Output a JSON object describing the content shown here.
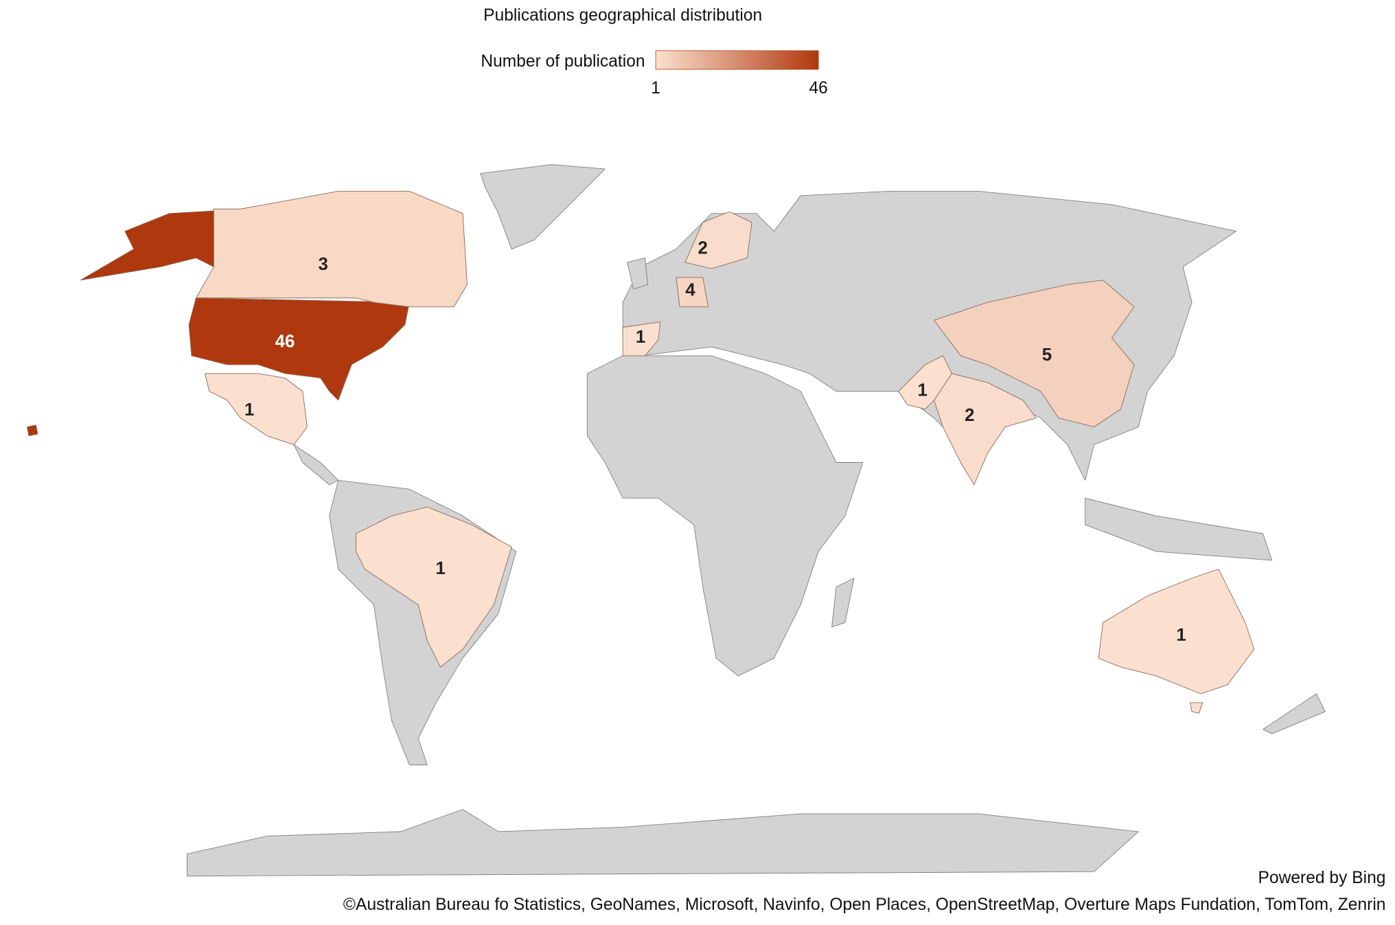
{
  "chart_data": {
    "type": "choropleth",
    "title": "Publications geographical distribution",
    "legend_title": "Number of publication",
    "legend_ticks": [
      1,
      46
    ],
    "color_range": [
      "#fbe0cf",
      "#b0380e"
    ],
    "regions": [
      {
        "value": 46
      },
      {
        "value": 3
      },
      {
        "value": 1
      },
      {
        "value": 1
      },
      {
        "value": 1
      },
      {
        "value": 4
      },
      {
        "value": 2
      },
      {
        "value": 5
      },
      {
        "value": 1
      },
      {
        "value": 2
      },
      {
        "value": 1
      }
    ]
  },
  "attribution": [
    "Powered by Bing",
    "©Australian Bureau fo Statistics, GeoNames, Microsoft, Navinfo, Open Places, OpenStreetMap, Overture Maps Fundation, TomTom, Zenrin"
  ]
}
